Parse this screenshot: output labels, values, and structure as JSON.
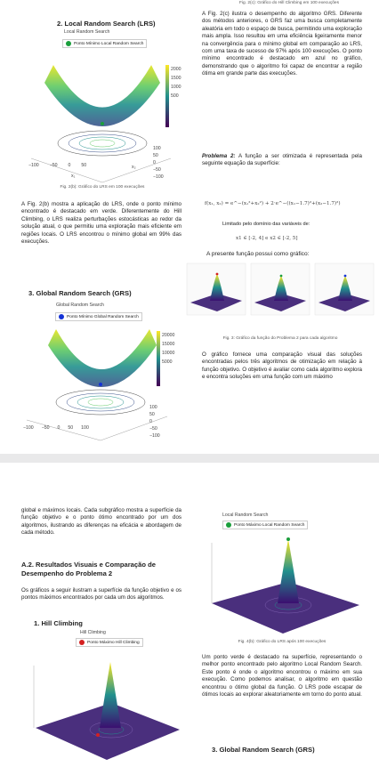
{
  "page1": {
    "top_caption": "Fig. 2(c): Gráfico do Hill Climbing em 100 execuções",
    "sec2_title": "2.   Local Random Search (LRS)",
    "sec2_plot_title": "Local Random Search",
    "sec2_legend": "Ponto Mínimo Local Random Search",
    "sec2_colorbar": [
      "2000",
      "1500",
      "1000",
      "500"
    ],
    "sec2_axis_left": [
      "−100",
      "−50",
      "0",
      "50"
    ],
    "sec2_axis_right": [
      "100",
      "50",
      "0",
      "−50",
      "−100"
    ],
    "sec2_axis_names": [
      "x₁",
      "x₂"
    ],
    "sec2_caption": "Fig. 2(b): Gráfico do LRS em 100 execuções",
    "para_lrs": "A Fig. 2(b) mostra a aplicação do LRS, onde o ponto mínimo encontrado é destacado em verde. Diferentemente do Hill Climbing, o LRS realiza perturbações estocásticas ao redor da solução atual, o que permitiu uma exploração mais eficiente em regiões locais. O LRS encontrou o mínimo global em 99% das execuções.",
    "sec3_title": "3.   Global Random Search (GRS)",
    "sec3_plot_title": "Global Random Search",
    "sec3_legend": "Ponto Mínimo Global Random Search",
    "sec3_colorbar": [
      "20000",
      "15000",
      "10000",
      "5000"
    ],
    "sec3_axis_left": [
      "−100",
      "−50",
      "0",
      "50",
      "100"
    ],
    "sec3_axis_right": [
      "100",
      "50",
      "0",
      "−50",
      "−100"
    ],
    "right_para1": "A Fig. 2(c) ilustra o desempenho do algoritmo GRS. Diferente dos métodos anteriores, o GRS faz uma busca completamente aleatória em todo o espaço de busca, permitindo uma exploração mais ampla. Isso resultou em uma eficiência ligeiramente menor na convergência para o mínimo global em comparação ao LRS, com uma taxa de sucesso de 97% após 100 execuções. O ponto mínimo encontrado é destacado em azul no gráfico, demonstrando que o algoritmo foi capaz de encontrar a região ótima em grande parte das execuções.",
    "problem_label": "Problema 2:",
    "problem_text": " A função a ser otimizada é representada pela seguinte equação da superfície:",
    "formula": "f(x₁, x₂) = e^−(x₁²+x₂²) + 2·e^−((x₁−1.7)²+(x₂−1.7)²)",
    "domain_label": "Limitado pelo domínio das variáveis de:",
    "domain_text": "x1 ∈ [-2, 4]  e  x2 ∈ [-2, 5]",
    "present_text": "A presente função possui como gráfico:",
    "fig3_caption": "Fig. 3: Gráfico da função do Problema 2 para cada algoritmo",
    "right_para2": "O gráfico fornece uma comparação visual das soluções encontradas pelos três algoritmos de otimização em relação à função objetivo. O objetivo é avaliar como cada algoritmo explora e encontra soluções em uma função com um máximo"
  },
  "page2": {
    "left_para1": "global e máximos locais. Cada subgráfico mostra a superfície da função objetivo e o ponto ótimo encontrado por um dos algoritmos, ilustrando as diferenças na eficácia e abordagem de cada método.",
    "a2_title": "A.2. Resultados Visuais e Comparação de Desempenho do Problema 2",
    "left_para2": "Os gráficos a seguir ilustram a superfície da função objetivo e os pontos máximos encontrados por cada um dos algoritmos.",
    "hc_title": "1.   Hill Climbing",
    "hc_plot_title": "Hill Climbing",
    "hc_legend": "Ponto Máximo Hill Climbing",
    "lrs_plot_title": "Local Random Search",
    "lrs_legend": "Ponto Máximo Local Random Search",
    "lrs_caption": "Fig. 4(b): Gráfico do LRS após 100 execuções",
    "right_para": "Um ponto verde é destacado na superfície, representando o melhor ponto encontrado pelo algoritmo Local Random Search. Este ponto é onde o algoritmo encontrou o máximo em sua execução. Como podemos analisar, o algoritmo em questão encontrou o ótimo global da função. O LRS pode escapar de ótimos locais ao explorar aleatoriamente em torno do ponto atual.",
    "grs_title": "3.   Global Random Search (GRS)"
  },
  "colors": {
    "green_point": "#1a9e3c",
    "blue_point": "#1432d6",
    "red_point": "#d42020",
    "surface_low": "#3b0f70",
    "surface_mid": "#21908d",
    "surface_high": "#fde725"
  }
}
